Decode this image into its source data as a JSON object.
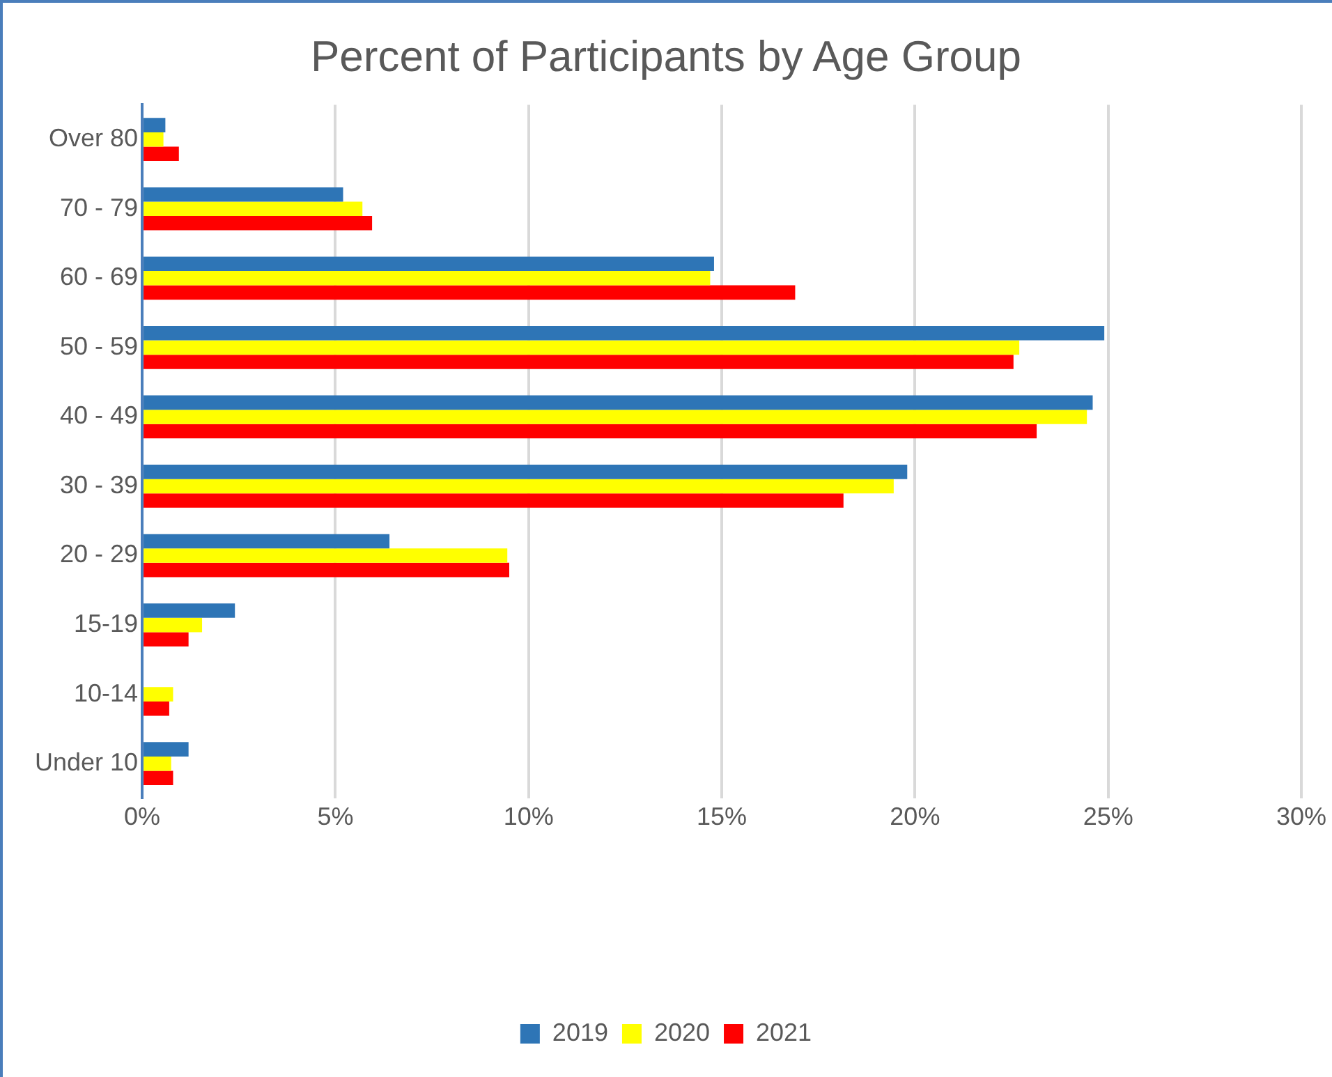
{
  "chart_data": {
    "type": "bar",
    "orientation": "horizontal",
    "title": "Percent of Participants by Age Group",
    "categories": [
      "Over 80",
      "70 - 79",
      "60 - 69",
      "50 - 59",
      "40 - 49",
      "30 - 39",
      "20 - 29",
      "15-19",
      "10-14",
      "Under 10"
    ],
    "series": [
      {
        "name": "2019",
        "color": "#2e75b6",
        "values": [
          0.6,
          5.2,
          14.8,
          24.9,
          24.6,
          19.8,
          6.4,
          2.4,
          0,
          1.2
        ]
      },
      {
        "name": "2020",
        "color": "#ffff00",
        "values": [
          0.55,
          5.7,
          14.7,
          22.7,
          24.45,
          19.45,
          9.45,
          1.55,
          0.8,
          0.75
        ]
      },
      {
        "name": "2021",
        "color": "#ff0000",
        "values": [
          0.95,
          5.95,
          16.9,
          22.55,
          23.15,
          18.15,
          9.5,
          1.2,
          0.7,
          0.8
        ]
      }
    ],
    "xlim": [
      0,
      30
    ],
    "xticks": [
      {
        "value": 0,
        "label": "0%"
      },
      {
        "value": 5,
        "label": "5%"
      },
      {
        "value": 10,
        "label": "10%"
      },
      {
        "value": 15,
        "label": "15%"
      },
      {
        "value": 20,
        "label": "20%"
      },
      {
        "value": 25,
        "label": "25%"
      },
      {
        "value": 30,
        "label": "30%"
      }
    ],
    "grid": "x",
    "legend": "bottom"
  }
}
